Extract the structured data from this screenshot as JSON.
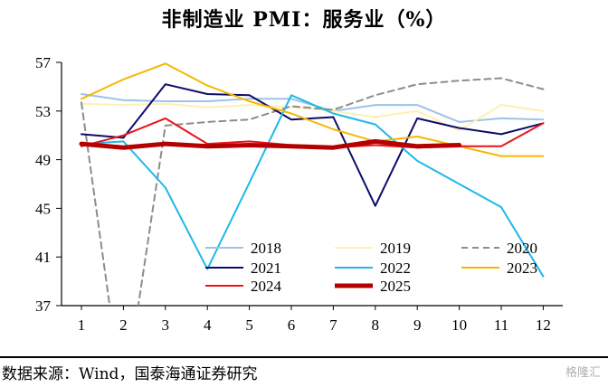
{
  "title": "非制造业 PMI：服务业（%）",
  "source": "数据来源：Wind，国泰海通证券研究",
  "watermark": "格隆汇",
  "chart_data": {
    "type": "line",
    "title": "非制造业 PMI：服务业（%）",
    "xlabel": "",
    "ylabel": "",
    "x": [
      1,
      2,
      3,
      4,
      5,
      6,
      7,
      8,
      9,
      10,
      11,
      12
    ],
    "ylim": [
      37,
      57
    ],
    "yticks": [
      37,
      41,
      45,
      49,
      53,
      57
    ],
    "grid": false,
    "legend_position": "bottom-inside",
    "series": [
      {
        "name": "2018",
        "color": "#9dc3e6",
        "dash": "solid",
        "width": 2,
        "values": [
          54.4,
          53.9,
          53.8,
          53.8,
          54.0,
          54.0,
          53.0,
          53.5,
          53.5,
          52.1,
          52.4,
          52.3
        ]
      },
      {
        "name": "2019",
        "color": "#fff0b3",
        "dash": "solid",
        "width": 2,
        "values": [
          53.6,
          53.5,
          53.6,
          53.3,
          53.5,
          53.3,
          53.0,
          52.5,
          53.0,
          51.4,
          53.5,
          53.0
        ]
      },
      {
        "name": "2020",
        "color": "#8c8c8c",
        "dash": "dashed",
        "width": 2,
        "values": [
          53.7,
          28.9,
          51.8,
          52.1,
          52.3,
          53.4,
          53.1,
          54.3,
          55.2,
          55.5,
          55.7,
          54.8
        ]
      },
      {
        "name": "2021",
        "color": "#0c0c6a",
        "dash": "solid",
        "width": 2,
        "values": [
          51.1,
          50.8,
          55.2,
          54.4,
          54.3,
          52.3,
          52.5,
          45.2,
          52.4,
          51.6,
          51.1,
          52.0
        ]
      },
      {
        "name": "2022",
        "color": "#1fb8e8",
        "dash": "solid",
        "width": 2,
        "values": [
          50.3,
          50.5,
          46.7,
          40.0,
          47.1,
          54.3,
          52.8,
          51.9,
          48.9,
          47.0,
          45.1,
          39.4
        ]
      },
      {
        "name": "2023",
        "color": "#f5b800",
        "dash": "solid",
        "width": 2,
        "values": [
          54.0,
          55.6,
          56.9,
          55.1,
          53.8,
          52.8,
          51.5,
          50.5,
          50.9,
          50.1,
          49.3,
          49.3
        ]
      },
      {
        "name": "2024",
        "color": "#e8141c",
        "dash": "solid",
        "width": 2,
        "values": [
          50.1,
          51.0,
          52.4,
          50.3,
          50.5,
          50.2,
          50.0,
          50.2,
          50.0,
          50.1,
          50.1,
          52.0
        ]
      },
      {
        "name": "2025",
        "color": "#b40000",
        "dash": "solid",
        "width": 5,
        "values": [
          50.3,
          50.0,
          50.3,
          50.1,
          50.2,
          50.1,
          50.0,
          50.5,
          50.1,
          50.2,
          null,
          null
        ]
      }
    ]
  }
}
